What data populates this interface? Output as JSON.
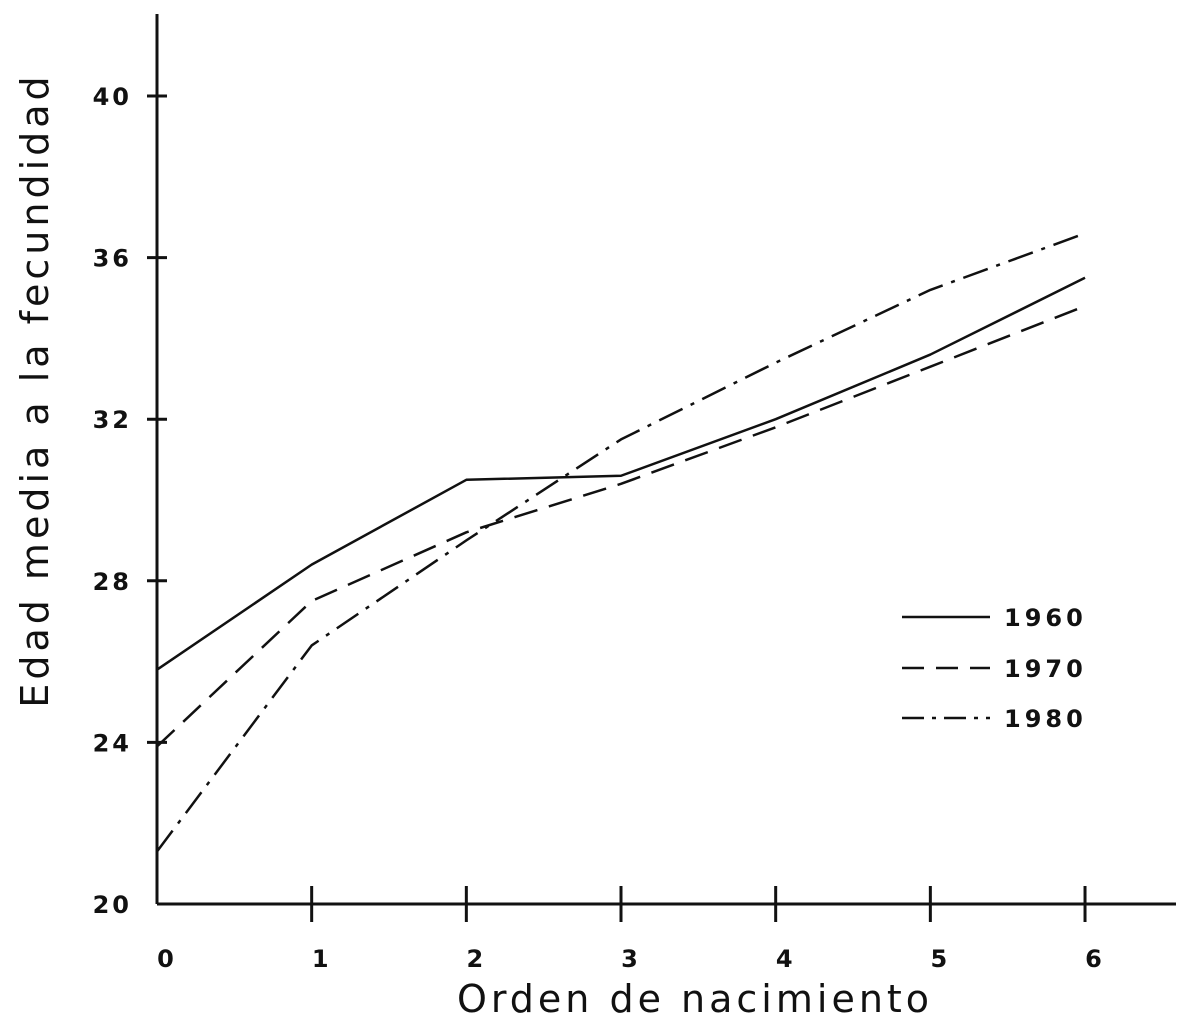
{
  "chart_data": {
    "type": "line",
    "xlabel": "Orden de nacimiento",
    "ylabel": "Edad media a la fecundidad",
    "x": [
      0,
      1,
      2,
      3,
      4,
      5,
      6
    ],
    "x_tick_labels": [
      "0",
      "1",
      "2",
      "3",
      "4",
      "5",
      "6"
    ],
    "y_ticks": [
      20,
      24,
      28,
      32,
      36,
      40
    ],
    "y_tick_labels": [
      "20",
      "24",
      "28",
      "32",
      "36",
      "40"
    ],
    "xlim": [
      0,
      6.5
    ],
    "ylim": [
      20,
      42
    ],
    "grid": false,
    "legend_position": "right",
    "series": [
      {
        "name": "1960",
        "style": "solid",
        "color": "#111111",
        "values": [
          25.8,
          28.4,
          30.5,
          30.6,
          32.0,
          33.6,
          35.5
        ]
      },
      {
        "name": "1970",
        "style": "dashed",
        "color": "#111111",
        "values": [
          23.9,
          27.5,
          29.2,
          30.4,
          31.8,
          33.3,
          34.8
        ]
      },
      {
        "name": "1980",
        "style": "dashdot",
        "color": "#111111",
        "values": [
          21.3,
          26.4,
          29.0,
          31.5,
          33.4,
          35.2,
          36.6
        ]
      }
    ]
  }
}
